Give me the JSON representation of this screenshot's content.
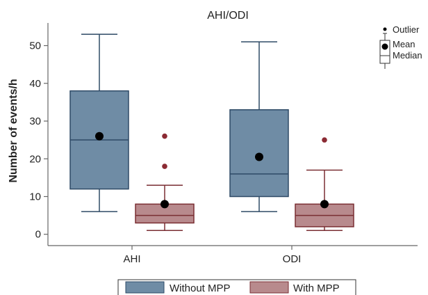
{
  "chart_data": {
    "type": "box",
    "title": "AHI/ODI",
    "xlabel": "",
    "ylabel": "Number of events/h",
    "ylim": [
      -3,
      56
    ],
    "yticks": [
      0,
      10,
      20,
      30,
      40,
      50
    ],
    "categories": [
      "AHI",
      "ODI"
    ],
    "grid": false,
    "series": [
      {
        "name": "Without MPP",
        "color": "#6f8ca5",
        "edge_color": "#2e4a66",
        "boxes": [
          {
            "category": "AHI",
            "whisker_low": 6,
            "q1": 12,
            "median": 25,
            "q3": 38,
            "whisker_high": 53,
            "mean": 26,
            "outliers": []
          },
          {
            "category": "ODI",
            "whisker_low": 6,
            "q1": 10,
            "median": 16,
            "q3": 33,
            "whisker_high": 51,
            "mean": 20.5,
            "outliers": []
          }
        ]
      },
      {
        "name": "With MPP",
        "color": "#b88a8d",
        "edge_color": "#7a2e33",
        "boxes": [
          {
            "category": "AHI",
            "whisker_low": 1,
            "q1": 3,
            "median": 5,
            "q3": 8,
            "whisker_high": 13,
            "mean": 8,
            "outliers": [
              18,
              26
            ]
          },
          {
            "category": "ODI",
            "whisker_low": 1,
            "q1": 2,
            "median": 5,
            "q3": 8,
            "whisker_high": 17,
            "mean": 8,
            "outliers": [
              25
            ]
          }
        ]
      }
    ],
    "key": {
      "outlier_label": "Outlier",
      "mean_label": "Mean",
      "median_label": "Median",
      "outlier_color": "#8b2a33",
      "mean_color": "#000000"
    },
    "legend_position": "bottom"
  }
}
